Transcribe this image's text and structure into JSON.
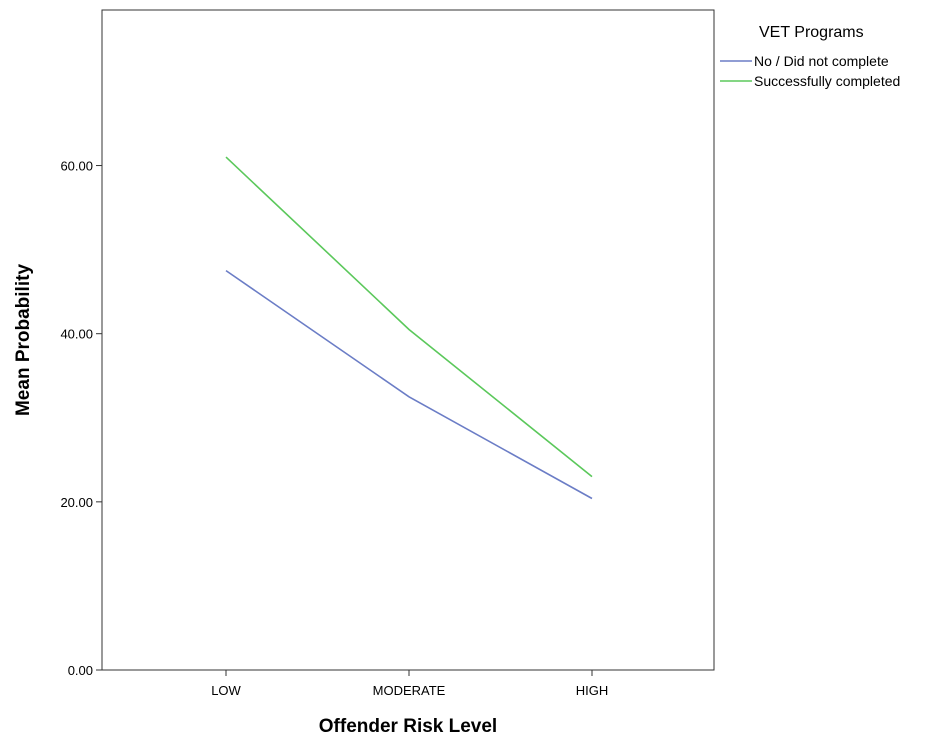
{
  "chart_data": {
    "type": "line",
    "categories": [
      "LOW",
      "MODERATE",
      "HIGH"
    ],
    "series": [
      {
        "name": "No / Did not complete",
        "values": [
          47.5,
          32.5,
          20.4
        ],
        "color": "#6b7dc6"
      },
      {
        "name": "Successfully completed",
        "values": [
          61.0,
          40.5,
          23.0
        ],
        "color": "#5bc85b"
      }
    ],
    "xlabel": "Offender Risk Level",
    "ylabel": "Mean Probability",
    "yticks": [
      "0.00",
      "20.00",
      "40.00",
      "60.00"
    ],
    "ylim": [
      0,
      78.5
    ],
    "grid": false,
    "legend": {
      "title": "VET Programs",
      "placement": "right"
    }
  }
}
